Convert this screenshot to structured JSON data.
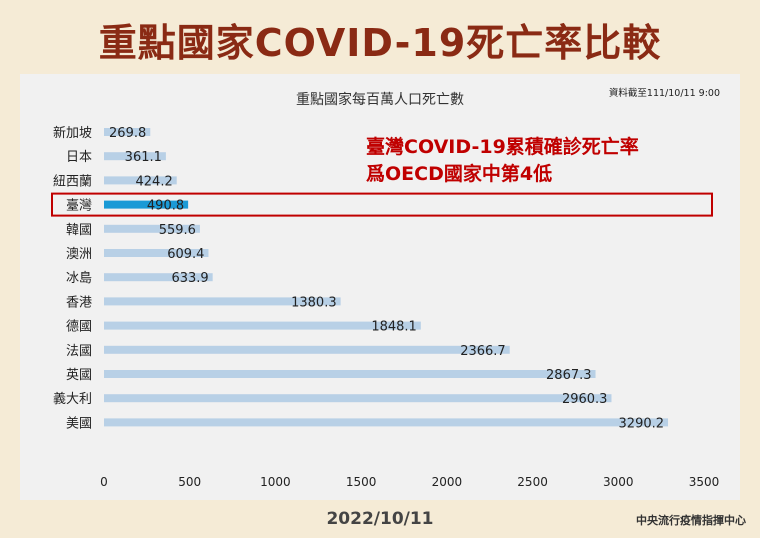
{
  "header": {
    "title": "重點國家COVID-19死亡率比較"
  },
  "footer": {
    "date": "2022/10/11",
    "source": "中央流行疫情指揮中心"
  },
  "annotation": {
    "line1": "臺灣COVID-19累積確診死亡率",
    "line2": "爲OECD國家中第4低"
  },
  "colors": {
    "bar": "#b8d0e6",
    "highlight_bar": "#1a9ad6",
    "highlight_box": "#c00000",
    "title": "#8a2a14",
    "annotation": "#c00000"
  },
  "chart_data": {
    "type": "bar",
    "orientation": "horizontal",
    "title": "重點國家每百萬人口死亡數",
    "subtitle": "資料截至111/10/11 9:00",
    "categories": [
      "新加坡",
      "日本",
      "紐西蘭",
      "臺灣",
      "韓國",
      "澳洲",
      "冰島",
      "香港",
      "德國",
      "法國",
      "英國",
      "義大利",
      "美國"
    ],
    "values": [
      269.8,
      361.1,
      424.2,
      490.8,
      559.6,
      609.4,
      633.9,
      1380.3,
      1848.1,
      2366.7,
      2867.3,
      2960.3,
      3290.2
    ],
    "value_labels": [
      "269.8",
      "361.1",
      "424.2",
      "490.8",
      "559.6",
      "609.4",
      "633.9",
      "1380.3",
      "1848.1",
      "2366.7",
      "2867.3",
      "2960.3",
      "3290.2"
    ],
    "highlight": "臺灣",
    "xlim": [
      0,
      3500
    ],
    "xticks": [
      "0",
      "500",
      "1000",
      "1500",
      "2000",
      "2500",
      "3000",
      "3500"
    ],
    "grid": false,
    "legend": "none"
  }
}
